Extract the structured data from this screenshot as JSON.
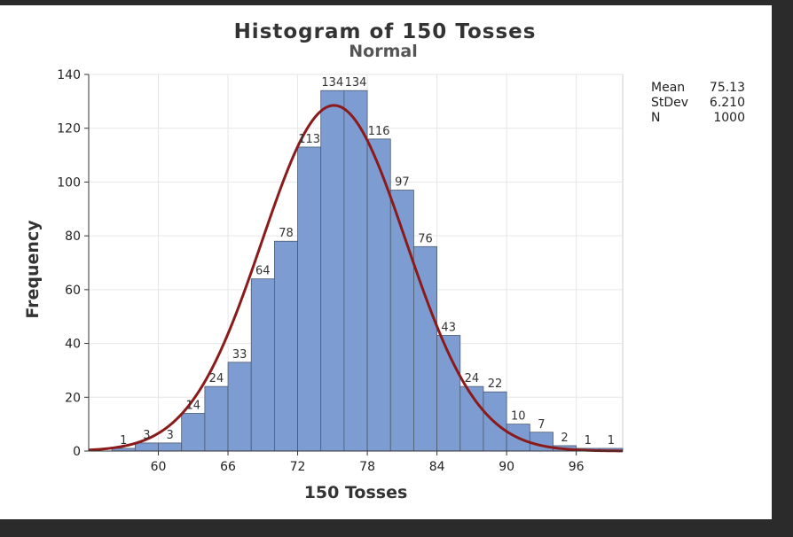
{
  "chart_data": {
    "type": "bar",
    "title": "Histogram of 150 Tosses",
    "subtitle": "Normal",
    "xlabel": "150 Tosses",
    "ylabel": "Frequency",
    "bin_width": 2,
    "x_bin_centers": [
      55,
      57,
      59,
      61,
      63,
      65,
      67,
      69,
      71,
      73,
      75,
      77,
      79,
      81,
      83,
      85,
      87,
      89,
      91,
      93,
      95,
      97,
      99
    ],
    "values": [
      0,
      1,
      3,
      3,
      14,
      24,
      33,
      64,
      78,
      113,
      134,
      134,
      116,
      97,
      76,
      43,
      24,
      22,
      10,
      7,
      2,
      1,
      1
    ],
    "xlim": [
      54,
      100
    ],
    "ylim": [
      0,
      140
    ],
    "x_ticks": [
      60,
      66,
      72,
      78,
      84,
      90,
      96
    ],
    "y_ticks": [
      0,
      20,
      40,
      60,
      80,
      100,
      120,
      140
    ],
    "grid": true,
    "fit": {
      "type": "normal",
      "mean": 75.13,
      "stdev": 6.21,
      "n": 1000,
      "color": "#8b1a1a"
    },
    "bar_color": "#7d9dd2",
    "stats": [
      {
        "label": "Mean",
        "value": "75.13"
      },
      {
        "label": "StDev",
        "value": "6.210"
      },
      {
        "label": "N",
        "value": "1000"
      }
    ]
  }
}
